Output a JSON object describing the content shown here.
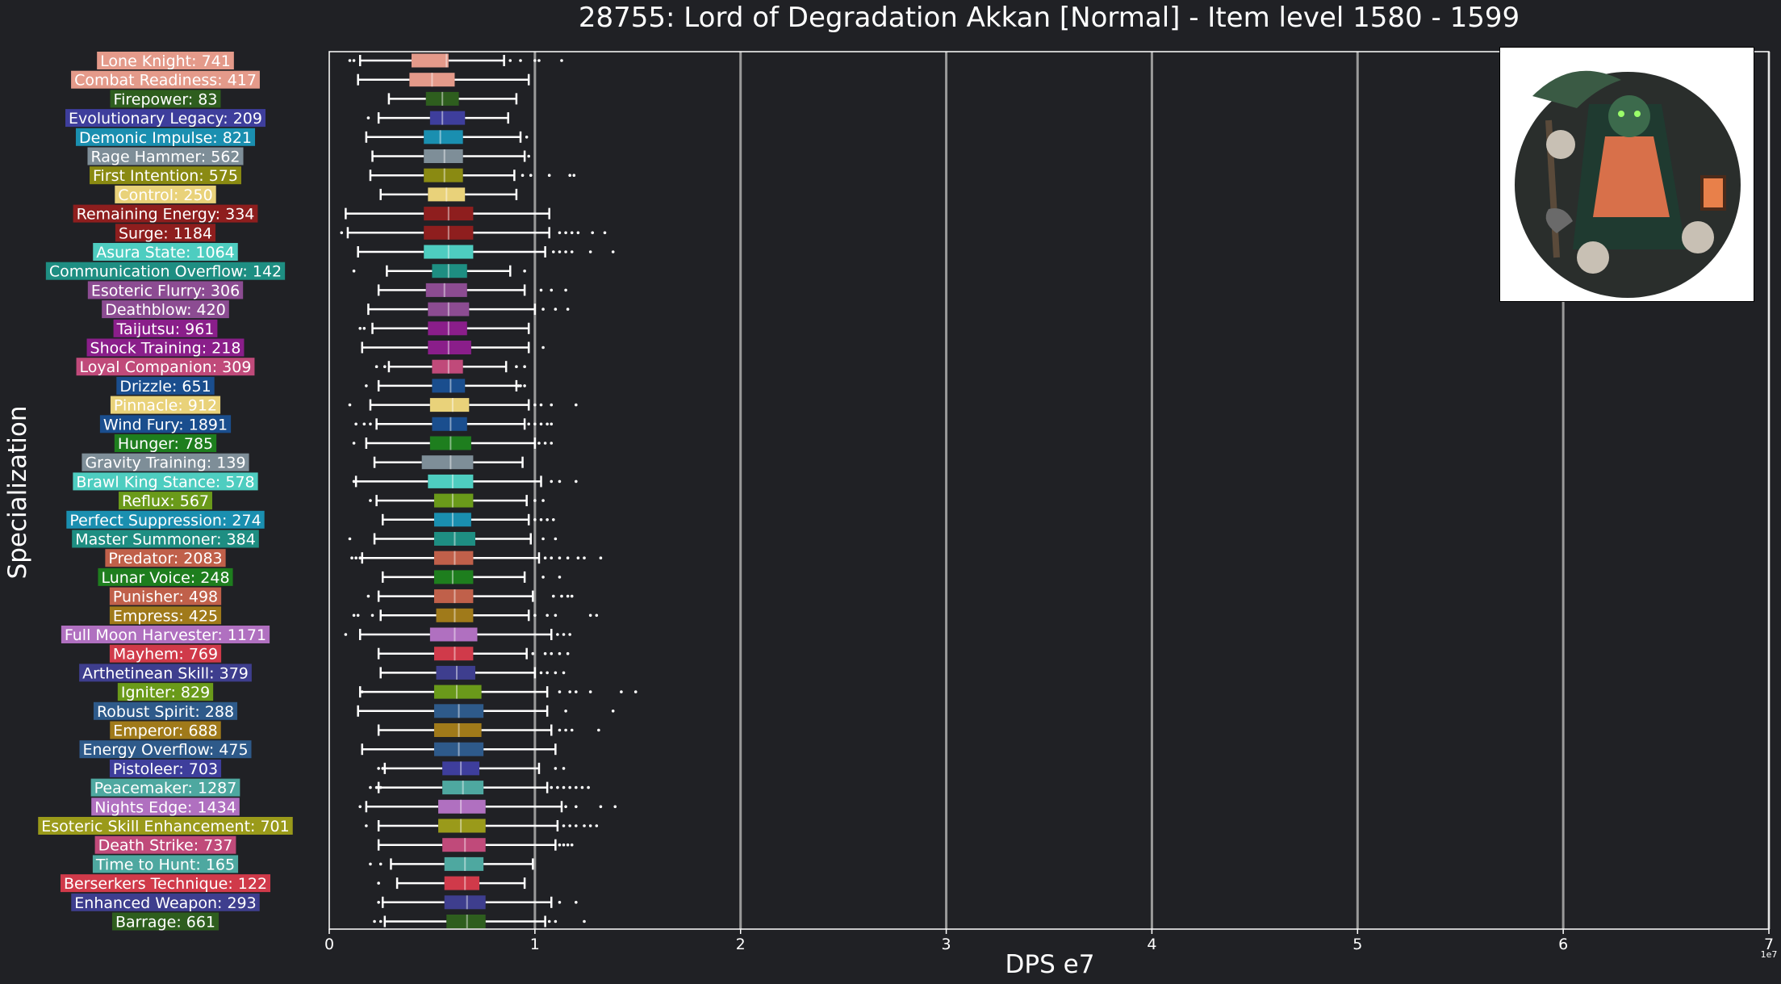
{
  "title": "28755: Lord of Degradation Akkan [Normal] - Item level 1580 - 1599",
  "chart_data": {
    "type": "box",
    "title": "28755: Lord of Degradation Akkan [Normal] - Item level 1580 - 1599",
    "xlabel": "DPS e7",
    "ylabel": "Specialization",
    "x_multiplier_label": "1e7",
    "xlim": [
      0,
      7
    ],
    "xticks": [
      0,
      1,
      2,
      3,
      4,
      5,
      6,
      7
    ],
    "grid_x": true,
    "value_units": "1e7 DPS",
    "series": [
      {
        "label": "Lone Knight: 741",
        "color": "#E49A8A",
        "wlo": 0.15,
        "q1": 0.4,
        "med": 0.57,
        "q3": 0.58,
        "whi": 0.85,
        "outliers": [
          0.1,
          0.12,
          0.88,
          0.93,
          1.0,
          1.02,
          1.13
        ]
      },
      {
        "label": "Combat Readiness: 417",
        "color": "#E49A8A",
        "wlo": 0.14,
        "q1": 0.39,
        "med": 0.5,
        "q3": 0.61,
        "whi": 0.97,
        "outliers": []
      },
      {
        "label": "Firepower: 83",
        "color": "#2E5E1E",
        "wlo": 0.29,
        "q1": 0.47,
        "med": 0.55,
        "q3": 0.63,
        "whi": 0.91,
        "outliers": []
      },
      {
        "label": "Evolutionary Legacy: 209",
        "color": "#3E3E9C",
        "wlo": 0.24,
        "q1": 0.49,
        "med": 0.55,
        "q3": 0.66,
        "whi": 0.87,
        "outliers": [
          0.19
        ]
      },
      {
        "label": "Demonic Impulse: 821",
        "color": "#1A8FB0",
        "wlo": 0.18,
        "q1": 0.46,
        "med": 0.54,
        "q3": 0.65,
        "whi": 0.93,
        "outliers": [
          0.96
        ]
      },
      {
        "label": "Rage Hammer: 562",
        "color": "#7E8E98",
        "wlo": 0.21,
        "q1": 0.46,
        "med": 0.56,
        "q3": 0.65,
        "whi": 0.95,
        "outliers": [
          0.97
        ]
      },
      {
        "label": "First Intention: 575",
        "color": "#8A8A12",
        "wlo": 0.2,
        "q1": 0.46,
        "med": 0.56,
        "q3": 0.65,
        "whi": 0.9,
        "outliers": [
          0.94,
          0.98,
          1.07,
          1.17,
          1.19
        ]
      },
      {
        "label": "Control: 250",
        "color": "#E9D27A",
        "wlo": 0.25,
        "q1": 0.48,
        "med": 0.57,
        "q3": 0.66,
        "whi": 0.91,
        "outliers": []
      },
      {
        "label": "Remaining Energy: 334",
        "color": "#8E1E1E",
        "wlo": 0.08,
        "q1": 0.46,
        "med": 0.58,
        "q3": 0.7,
        "whi": 1.07,
        "outliers": []
      },
      {
        "label": "Surge: 1184",
        "color": "#8E1E1E",
        "wlo": 0.09,
        "q1": 0.46,
        "med": 0.58,
        "q3": 0.7,
        "whi": 1.07,
        "outliers": [
          0.06,
          1.12,
          1.15,
          1.18,
          1.21,
          1.28,
          1.34
        ]
      },
      {
        "label": "Asura State: 1064",
        "color": "#4ECDC0",
        "wlo": 0.14,
        "q1": 0.46,
        "med": 0.58,
        "q3": 0.7,
        "whi": 1.05,
        "outliers": [
          1.09,
          1.12,
          1.15,
          1.18,
          1.27,
          1.38
        ]
      },
      {
        "label": "Communication Overflow: 142",
        "color": "#1E8E82",
        "wlo": 0.28,
        "q1": 0.5,
        "med": 0.58,
        "q3": 0.67,
        "whi": 0.88,
        "outliers": [
          0.12,
          0.95
        ]
      },
      {
        "label": "Esoteric Flurry: 306",
        "color": "#8C4C92",
        "wlo": 0.24,
        "q1": 0.47,
        "med": 0.56,
        "q3": 0.67,
        "whi": 0.95,
        "outliers": [
          1.03,
          1.08,
          1.15
        ]
      },
      {
        "label": "Deathblow: 420",
        "color": "#8C4C92",
        "wlo": 0.19,
        "q1": 0.48,
        "med": 0.58,
        "q3": 0.68,
        "whi": 1.0,
        "outliers": [
          1.04,
          1.1,
          1.16
        ]
      },
      {
        "label": "Taijutsu: 961",
        "color": "#8A1E8A",
        "wlo": 0.21,
        "q1": 0.48,
        "med": 0.58,
        "q3": 0.67,
        "whi": 0.97,
        "outliers": [
          0.15,
          0.17
        ]
      },
      {
        "label": "Shock Training: 218",
        "color": "#8A1E8A",
        "wlo": 0.16,
        "q1": 0.48,
        "med": 0.58,
        "q3": 0.69,
        "whi": 0.97,
        "outliers": [
          1.04
        ]
      },
      {
        "label": "Loyal Companion: 309",
        "color": "#C04A7A",
        "wlo": 0.29,
        "q1": 0.5,
        "med": 0.58,
        "q3": 0.65,
        "whi": 0.86,
        "outliers": [
          0.23,
          0.27,
          0.91,
          0.95
        ]
      },
      {
        "label": "Drizzle: 651",
        "color": "#1A4E8E",
        "wlo": 0.24,
        "q1": 0.5,
        "med": 0.59,
        "q3": 0.66,
        "whi": 0.91,
        "outliers": [
          0.18,
          0.92,
          0.93,
          0.95
        ]
      },
      {
        "label": "Pinnacle: 912",
        "color": "#E9D27A",
        "wlo": 0.2,
        "q1": 0.49,
        "med": 0.6,
        "q3": 0.68,
        "whi": 0.97,
        "outliers": [
          0.1,
          1.0,
          1.03,
          1.08,
          1.2
        ]
      },
      {
        "label": "Wind Fury: 1891",
        "color": "#1A4E8E",
        "wlo": 0.23,
        "q1": 0.5,
        "med": 0.59,
        "q3": 0.67,
        "whi": 0.95,
        "outliers": [
          0.13,
          0.17,
          0.2,
          0.97,
          1.0,
          1.03,
          1.06,
          1.08
        ]
      },
      {
        "label": "Hunger: 785",
        "color": "#1E7E1E",
        "wlo": 0.18,
        "q1": 0.49,
        "med": 0.59,
        "q3": 0.69,
        "whi": 1.0,
        "outliers": [
          0.12,
          1.02,
          1.05,
          1.08
        ]
      },
      {
        "label": "Gravity Training: 139",
        "color": "#7E8E98",
        "wlo": 0.22,
        "q1": 0.45,
        "med": 0.59,
        "q3": 0.7,
        "whi": 0.94,
        "outliers": []
      },
      {
        "label": "Brawl King Stance: 578",
        "color": "#4ECDC0",
        "wlo": 0.13,
        "q1": 0.48,
        "med": 0.6,
        "q3": 0.7,
        "whi": 1.03,
        "outliers": [
          0.12,
          1.08,
          1.12,
          1.2
        ]
      },
      {
        "label": "Reflux: 567",
        "color": "#6A9A1A",
        "wlo": 0.23,
        "q1": 0.51,
        "med": 0.6,
        "q3": 0.7,
        "whi": 0.96,
        "outliers": [
          0.2,
          1.0,
          1.04
        ]
      },
      {
        "label": "Perfect Suppression: 274",
        "color": "#1A8FB0",
        "wlo": 0.26,
        "q1": 0.51,
        "med": 0.6,
        "q3": 0.69,
        "whi": 0.97,
        "outliers": [
          1.0,
          1.03,
          1.06,
          1.09
        ]
      },
      {
        "label": "Master Summoner: 384",
        "color": "#1E8E82",
        "wlo": 0.22,
        "q1": 0.51,
        "med": 0.61,
        "q3": 0.71,
        "whi": 0.98,
        "outliers": [
          0.1,
          1.04,
          1.1
        ]
      },
      {
        "label": "Predator: 2083",
        "color": "#C0604A",
        "wlo": 0.16,
        "q1": 0.51,
        "med": 0.61,
        "q3": 0.7,
        "whi": 1.02,
        "outliers": [
          0.11,
          0.13,
          0.15,
          1.05,
          1.08,
          1.12,
          1.16,
          1.21,
          1.24,
          1.32
        ]
      },
      {
        "label": "Lunar Voice: 248",
        "color": "#1E7E1E",
        "wlo": 0.26,
        "q1": 0.51,
        "med": 0.6,
        "q3": 0.7,
        "whi": 0.95,
        "outliers": [
          1.04,
          1.12
        ]
      },
      {
        "label": "Punisher: 498",
        "color": "#C0604A",
        "wlo": 0.24,
        "q1": 0.51,
        "med": 0.61,
        "q3": 0.7,
        "whi": 0.99,
        "outliers": [
          0.19,
          1.09,
          1.13,
          1.16,
          1.18
        ]
      },
      {
        "label": "Empress: 425",
        "color": "#A07A1A",
        "wlo": 0.25,
        "q1": 0.52,
        "med": 0.61,
        "q3": 0.7,
        "whi": 0.97,
        "outliers": [
          0.12,
          0.14,
          0.21,
          1.0,
          1.06,
          1.1,
          1.27,
          1.3
        ]
      },
      {
        "label": "Full Moon Harvester: 1171",
        "color": "#B070C0",
        "wlo": 0.15,
        "q1": 0.49,
        "med": 0.61,
        "q3": 0.72,
        "whi": 1.08,
        "outliers": [
          0.08,
          1.11,
          1.14,
          1.17
        ]
      },
      {
        "label": "Mayhem: 769",
        "color": "#D03A4A",
        "wlo": 0.24,
        "q1": 0.51,
        "med": 0.61,
        "q3": 0.7,
        "whi": 0.96,
        "outliers": [
          0.99,
          1.05,
          1.08,
          1.12,
          1.16
        ]
      },
      {
        "label": "Arthetinean Skill: 379",
        "color": "#3E3E8E",
        "wlo": 0.25,
        "q1": 0.52,
        "med": 0.62,
        "q3": 0.71,
        "whi": 1.0,
        "outliers": [
          1.03,
          1.06,
          1.1,
          1.14
        ]
      },
      {
        "label": "Igniter: 829",
        "color": "#6A9A1A",
        "wlo": 0.15,
        "q1": 0.51,
        "med": 0.62,
        "q3": 0.74,
        "whi": 1.06,
        "outliers": [
          0.16,
          1.12,
          1.17,
          1.2,
          1.27,
          1.42,
          1.49
        ]
      },
      {
        "label": "Robust Spirit: 288",
        "color": "#2E5A8A",
        "wlo": 0.14,
        "q1": 0.51,
        "med": 0.63,
        "q3": 0.75,
        "whi": 1.06,
        "outliers": [
          1.15,
          1.38
        ]
      },
      {
        "label": "Emperor: 688",
        "color": "#A07A1A",
        "wlo": 0.24,
        "q1": 0.51,
        "med": 0.63,
        "q3": 0.74,
        "whi": 1.08,
        "outliers": [
          1.12,
          1.15,
          1.18,
          1.31
        ]
      },
      {
        "label": "Energy Overflow: 475",
        "color": "#2E5A8A",
        "wlo": 0.16,
        "q1": 0.51,
        "med": 0.63,
        "q3": 0.75,
        "whi": 1.1,
        "outliers": []
      },
      {
        "label": "Pistoleer: 703",
        "color": "#3E3E9C",
        "wlo": 0.27,
        "q1": 0.55,
        "med": 0.64,
        "q3": 0.73,
        "whi": 1.02,
        "outliers": [
          0.24,
          0.26,
          1.1,
          1.14
        ]
      },
      {
        "label": "Peacemaker: 1287",
        "color": "#4EA8A0",
        "wlo": 0.24,
        "q1": 0.55,
        "med": 0.65,
        "q3": 0.75,
        "whi": 1.06,
        "outliers": [
          0.2,
          0.23,
          0.25,
          1.08,
          1.11,
          1.14,
          1.17,
          1.2,
          1.23,
          1.26
        ]
      },
      {
        "label": "Nights Edge: 1434",
        "color": "#B070C0",
        "wlo": 0.18,
        "q1": 0.53,
        "med": 0.64,
        "q3": 0.76,
        "whi": 1.13,
        "outliers": [
          0.15,
          1.15,
          1.2,
          1.32,
          1.39
        ]
      },
      {
        "label": "Esoteric Skill Enhancement: 701",
        "color": "#9A9A1A",
        "wlo": 0.24,
        "q1": 0.53,
        "med": 0.64,
        "q3": 0.76,
        "whi": 1.11,
        "outliers": [
          0.18,
          1.14,
          1.17,
          1.2,
          1.24,
          1.27,
          1.3
        ]
      },
      {
        "label": "Death Strike: 737",
        "color": "#C04A7A",
        "wlo": 0.24,
        "q1": 0.55,
        "med": 0.66,
        "q3": 0.76,
        "whi": 1.1,
        "outliers": [
          1.12,
          1.14,
          1.16,
          1.18
        ]
      },
      {
        "label": "Time to Hunt: 165",
        "color": "#4EA8A0",
        "wlo": 0.3,
        "q1": 0.56,
        "med": 0.66,
        "q3": 0.75,
        "whi": 0.99,
        "outliers": [
          0.2,
          0.25
        ]
      },
      {
        "label": "Berserkers Technique: 122",
        "color": "#D03A4A",
        "wlo": 0.33,
        "q1": 0.56,
        "med": 0.66,
        "q3": 0.73,
        "whi": 0.95,
        "outliers": [
          0.24
        ]
      },
      {
        "label": "Enhanced Weapon: 293",
        "color": "#3E3E8E",
        "wlo": 0.26,
        "q1": 0.56,
        "med": 0.67,
        "q3": 0.76,
        "whi": 1.08,
        "outliers": [
          0.24,
          1.12,
          1.2
        ]
      },
      {
        "label": "Barrage: 661",
        "color": "#2E5E1E",
        "wlo": 0.27,
        "q1": 0.57,
        "med": 0.67,
        "q3": 0.76,
        "whi": 1.05,
        "outliers": [
          0.22,
          0.25,
          1.07,
          1.1,
          1.24
        ]
      }
    ]
  },
  "portrait": {
    "alt_name": "boss-portrait-akkan"
  }
}
